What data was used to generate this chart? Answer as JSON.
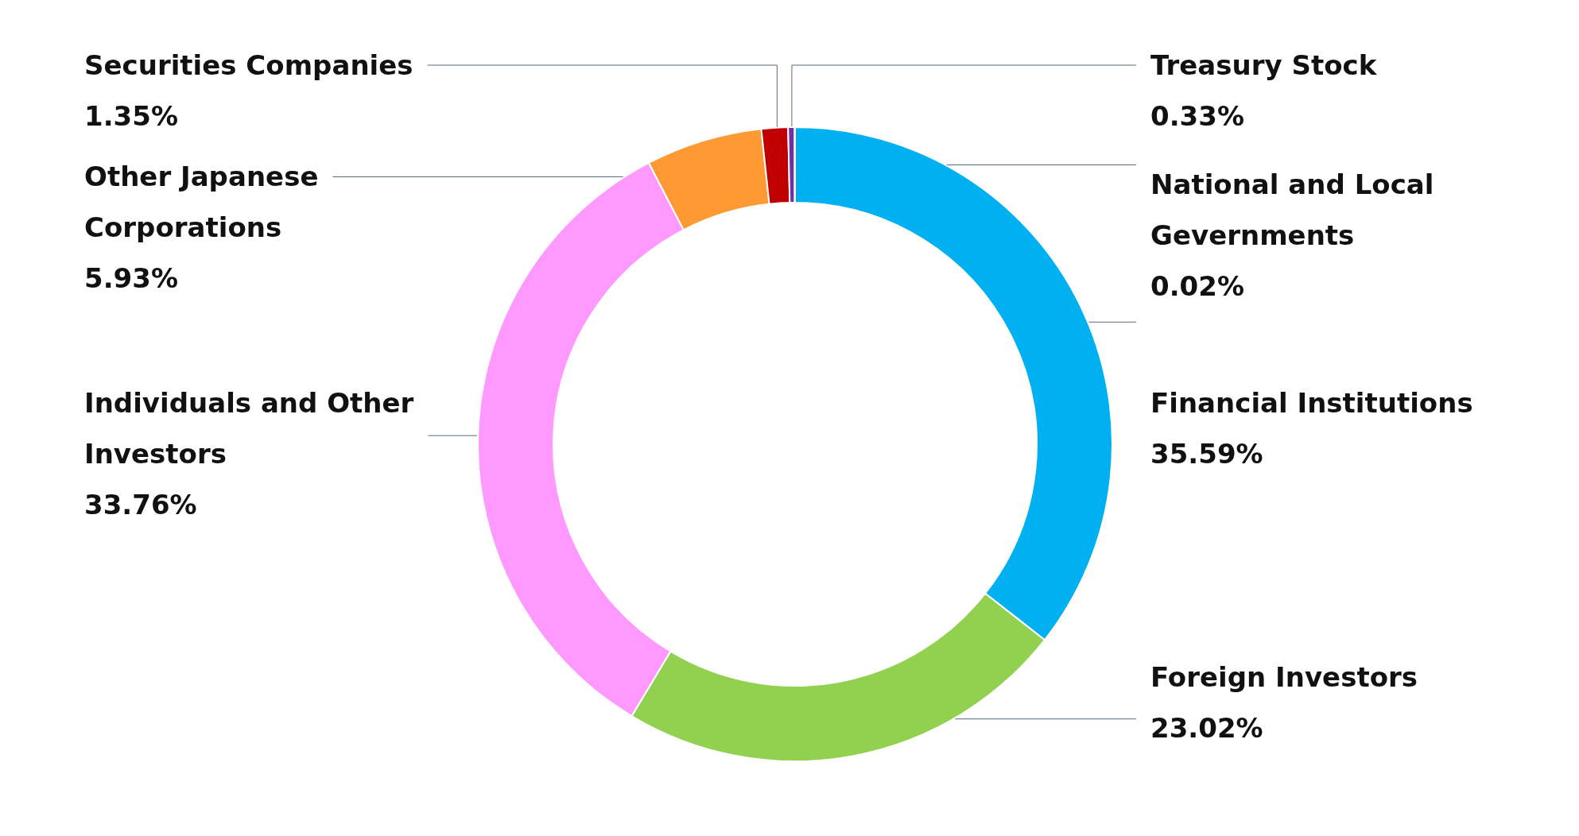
{
  "chart_data": {
    "type": "donut",
    "categories": [
      "Financial Institutions",
      "Foreign Investors",
      "Individuals and Other Investors",
      "Other Japanese Corporations",
      "Securities Companies",
      "Treasury Stock",
      "National and Local Gevernments"
    ],
    "values": [
      35.59,
      23.02,
      33.76,
      5.93,
      1.35,
      0.33,
      0.02
    ],
    "value_labels": [
      "35.59%",
      "23.02%",
      "33.76%",
      "5.93%",
      "1.35%",
      "0.33%",
      "0.02%"
    ],
    "colors": [
      "#00b0f0",
      "#92d050",
      "#ff99ff",
      "#ff9933",
      "#c00000",
      "#7030a0",
      "#4472c4"
    ]
  }
}
